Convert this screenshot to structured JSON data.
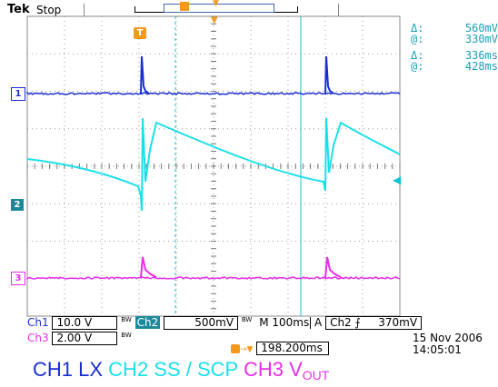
{
  "header": {
    "brand": "Tek",
    "status": "Stop"
  },
  "readouts": {
    "voltage_delta": "560mV",
    "voltage_at": "330mV",
    "time_delta": "336ms",
    "time_at": "428ms",
    "delta_symbol": "Δ:",
    "at_symbol": "@:"
  },
  "markers": {
    "ch1": "1",
    "ch2": "2",
    "ch3": "3",
    "trigger": "T"
  },
  "settings": {
    "ch1_label": "Ch1",
    "ch1_scale": "10.0 V",
    "ch2_label": "Ch2",
    "ch2_scale": "500mV",
    "bw": "BW",
    "timebase": "M 100ms",
    "trigger_label": "A",
    "trigger_source": "Ch2",
    "trigger_slope": "⨍",
    "trigger_level": "370mV",
    "ch3_label": "Ch3",
    "ch3_scale": "2.00 V",
    "trigger_position": "198.200ms"
  },
  "date": "15 Nov 2006",
  "time": "14:05:01",
  "caption": {
    "ch1": "CH1 LX",
    "ch2": "CH2 SS / SCP",
    "ch3_prefix": "CH3 V",
    "ch3_sub": "OUT"
  },
  "colors": {
    "ch1": "#1a2fd0",
    "ch2": "#19e0e8",
    "ch3": "#e62ee6",
    "readout": "#17a0b8"
  }
}
